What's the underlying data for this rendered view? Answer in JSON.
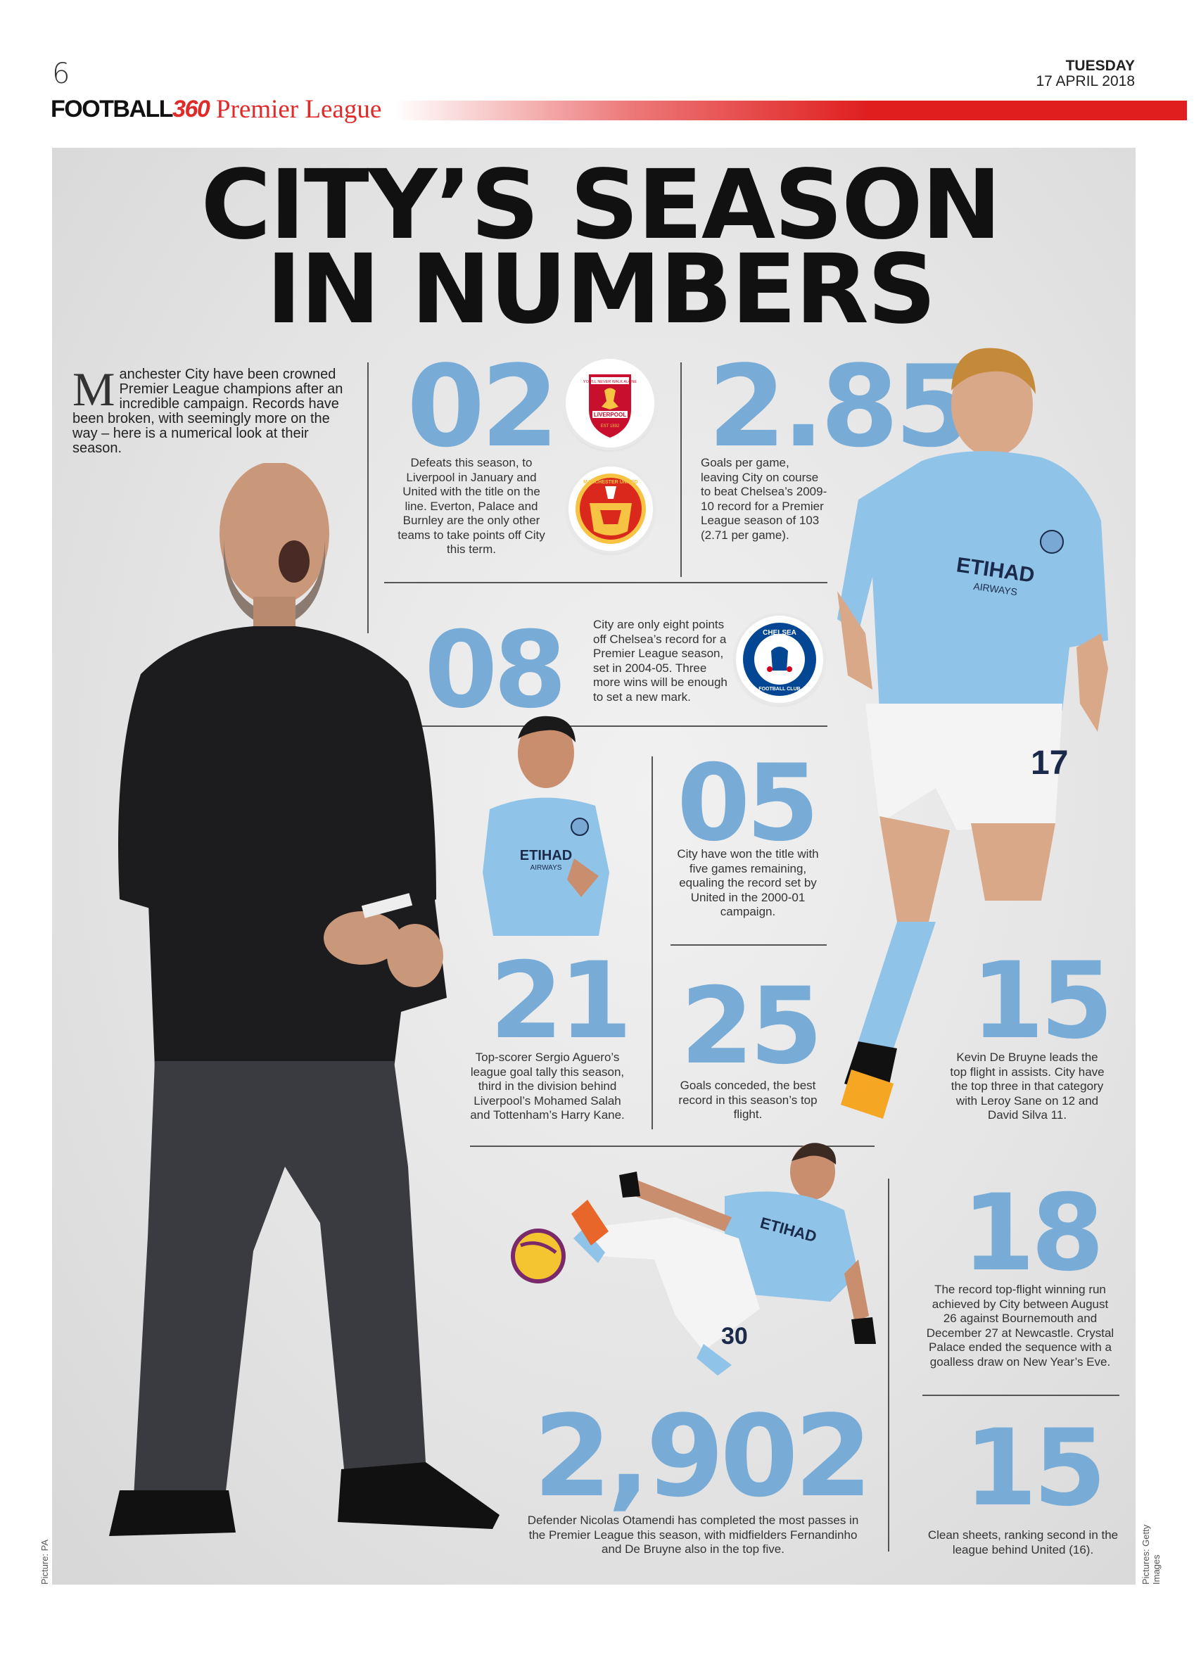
{
  "header": {
    "page_number": "6",
    "day": "TUESDAY",
    "date": "17 APRIL 2018",
    "brand_text": "FOOTBALL",
    "brand_number": "360",
    "section": "Premier League"
  },
  "headline": {
    "line1": "CITY’S SEASON",
    "line2": "IN NUMBERS"
  },
  "intro": {
    "dropcap": "M",
    "text": "anchester City have been crowned Premier League champions after an incredible campaign. Records have been broken, with seemingly more on the way – here is a numerical look at their season."
  },
  "stats": [
    {
      "number": "02",
      "caption": "Defeats this season, to Liverpool in January and United with the title on the line. Everton, Palace and Burnley are the only other teams to take points off City this term."
    },
    {
      "number": "2.85",
      "caption": "Goals per game, leaving City on course to beat Chelsea’s 2009-10 record for a Premier League season of 103 (2.71 per game)."
    },
    {
      "number": "08",
      "caption": "City are only eight points off Chelsea’s record for a Premier League season, set in 2004-05. Three more wins will be enough to set a new mark."
    },
    {
      "number": "05",
      "caption": "City have won the title with five games remaining, equaling the record set by United in the 2000-01 campaign."
    },
    {
      "number": "21",
      "caption": "Top-scorer Sergio Aguero’s league goal tally this season, third in the division behind Liverpool’s Mohamed Salah and Tottenham’s Harry Kane."
    },
    {
      "number": "25",
      "caption": "Goals conceded, the best record in this season’s top flight."
    },
    {
      "number": "15",
      "caption": "Kevin De Bruyne leads the top flight in assists. City have the top three in that category with Leroy Sane on 12 and David Silva 11."
    },
    {
      "number": "18",
      "caption": "The record top-flight winning run achieved by City between August 26 against Bournemouth and December 27 at Newcastle. Crystal Palace ended the sequence with a goalless draw on New Year’s Eve."
    },
    {
      "number": "2,902",
      "caption": "Defender Nicolas Otamendi has completed the most passes in the Premier League this season, with midfielders Fernandinho and De Bruyne also in the top five."
    },
    {
      "number": "15",
      "caption": "Clean sheets, ranking second in the league behind United (16)."
    }
  ],
  "badges": {
    "liverpool": {
      "label": "LIVERPOOL",
      "motto": "YOU'LL NEVER WALK ALONE",
      "est": "EST 1892"
    },
    "united": {
      "label": "MANCHESTER UNITED"
    },
    "chelsea": {
      "label": "CHELSEA",
      "sub": "FOOTBALL CLUB"
    }
  },
  "shirt_text": {
    "sponsor": "ETIHAD",
    "sub": "AIRWAYS",
    "number_kdb": "17",
    "number_ota": "30"
  },
  "credits": {
    "left": "Picture: PA",
    "right": "Pictures: Getty Images"
  },
  "colors": {
    "accent_red": "#e01e1e",
    "stat_blue": "#78acd6",
    "city_blue": "#8fc3e8"
  }
}
